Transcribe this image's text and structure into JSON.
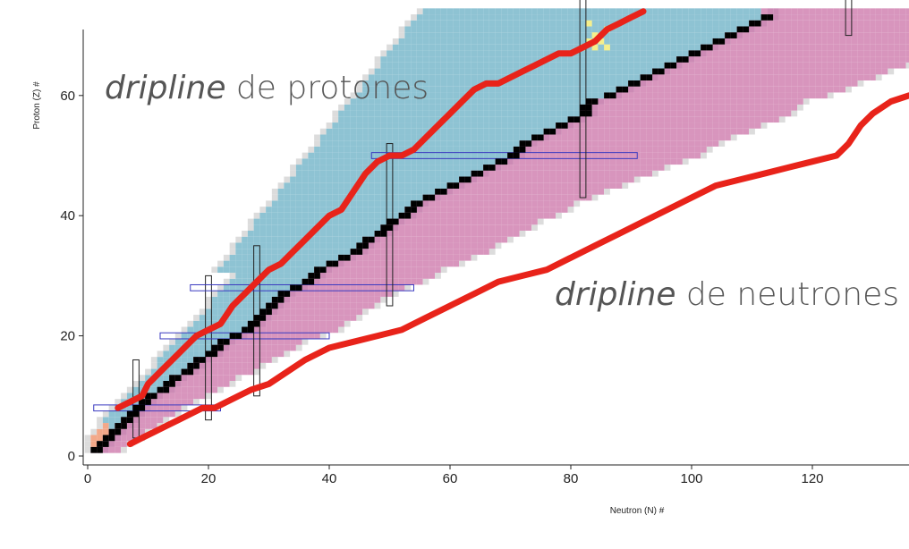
{
  "chart_data": {
    "type": "scatter",
    "title": "",
    "xlabel": "Neutron (N) #",
    "ylabel": "Proton (Z) #",
    "xlim": [
      -1,
      136
    ],
    "ylim": [
      -1,
      71
    ],
    "x_ticks": [
      0,
      20,
      40,
      60,
      80,
      100,
      120
    ],
    "y_ticks": [
      0,
      20,
      40,
      60
    ],
    "magic_numbers": [
      8,
      20,
      28,
      50,
      82,
      126
    ],
    "legend": [],
    "annotations": [
      {
        "italic": "dripline",
        "rest": " de protones",
        "anchor_n": 3,
        "anchor_z": 59
      },
      {
        "italic": "dripline",
        "rest": " de neutrones",
        "anchor_n": 77,
        "anchor_z": 26
      }
    ],
    "series": [
      {
        "name": "proton dripline",
        "color": "#e8231a",
        "points": [
          [
            5,
            8
          ],
          [
            7,
            9
          ],
          [
            9,
            10
          ],
          [
            10,
            12
          ],
          [
            11,
            13
          ],
          [
            12,
            14
          ],
          [
            14,
            16
          ],
          [
            15,
            17
          ],
          [
            16,
            18
          ],
          [
            17,
            19
          ],
          [
            18,
            20
          ],
          [
            20,
            21
          ],
          [
            22,
            22
          ],
          [
            24,
            25
          ],
          [
            26,
            27
          ],
          [
            28,
            29
          ],
          [
            30,
            31
          ],
          [
            32,
            32
          ],
          [
            34,
            34
          ],
          [
            36,
            36
          ],
          [
            38,
            38
          ],
          [
            40,
            40
          ],
          [
            42,
            41
          ],
          [
            44,
            44
          ],
          [
            46,
            47
          ],
          [
            48,
            49
          ],
          [
            50,
            50
          ],
          [
            52,
            50
          ],
          [
            54,
            51
          ],
          [
            56,
            53
          ],
          [
            58,
            55
          ],
          [
            60,
            57
          ],
          [
            62,
            59
          ],
          [
            64,
            61
          ],
          [
            66,
            62
          ],
          [
            68,
            62
          ],
          [
            70,
            63
          ],
          [
            72,
            64
          ],
          [
            74,
            65
          ],
          [
            76,
            66
          ],
          [
            78,
            67
          ],
          [
            80,
            67
          ],
          [
            82,
            68
          ],
          [
            84,
            69
          ],
          [
            86,
            71
          ],
          [
            88,
            72
          ],
          [
            90,
            73
          ],
          [
            92,
            74
          ]
        ]
      },
      {
        "name": "neutron dripline",
        "color": "#e8231a",
        "points": [
          [
            7,
            2
          ],
          [
            9,
            3
          ],
          [
            11,
            4
          ],
          [
            13,
            5
          ],
          [
            15,
            6
          ],
          [
            17,
            7
          ],
          [
            19,
            8
          ],
          [
            21,
            8
          ],
          [
            23,
            9
          ],
          [
            25,
            10
          ],
          [
            27,
            11
          ],
          [
            30,
            12
          ],
          [
            33,
            14
          ],
          [
            36,
            16
          ],
          [
            40,
            18
          ],
          [
            44,
            19
          ],
          [
            48,
            20
          ],
          [
            52,
            21
          ],
          [
            56,
            23
          ],
          [
            60,
            25
          ],
          [
            64,
            27
          ],
          [
            68,
            29
          ],
          [
            72,
            30
          ],
          [
            76,
            31
          ],
          [
            80,
            33
          ],
          [
            84,
            35
          ],
          [
            88,
            37
          ],
          [
            92,
            39
          ],
          [
            96,
            41
          ],
          [
            100,
            43
          ],
          [
            104,
            45
          ],
          [
            108,
            46
          ],
          [
            112,
            47
          ],
          [
            116,
            48
          ],
          [
            120,
            49
          ],
          [
            124,
            50
          ],
          [
            126,
            52
          ],
          [
            128,
            55
          ],
          [
            130,
            57
          ],
          [
            133,
            59
          ],
          [
            136,
            60
          ]
        ]
      },
      {
        "name": "stable isotopes",
        "color": "#000000",
        "points": [
          [
            1,
            1
          ],
          [
            2,
            2
          ],
          [
            3,
            3
          ],
          [
            4,
            4
          ],
          [
            5,
            5
          ],
          [
            6,
            6
          ],
          [
            7,
            7
          ],
          [
            8,
            8
          ],
          [
            9,
            9
          ],
          [
            10,
            10
          ],
          [
            12,
            11
          ],
          [
            13,
            12
          ],
          [
            14,
            13
          ],
          [
            16,
            14
          ],
          [
            17,
            15
          ],
          [
            18,
            16
          ],
          [
            20,
            17
          ],
          [
            21,
            18
          ],
          [
            22,
            19
          ],
          [
            24,
            20
          ],
          [
            26,
            21
          ],
          [
            27,
            22
          ],
          [
            28,
            23
          ],
          [
            29,
            24
          ],
          [
            30,
            25
          ],
          [
            31,
            26
          ],
          [
            32,
            27
          ],
          [
            34,
            28
          ],
          [
            36,
            29
          ],
          [
            37,
            30
          ],
          [
            38,
            31
          ],
          [
            40,
            32
          ],
          [
            42,
            33
          ],
          [
            44,
            34
          ],
          [
            45,
            35
          ],
          [
            46,
            36
          ],
          [
            48,
            37
          ],
          [
            49,
            38
          ],
          [
            50,
            39
          ],
          [
            52,
            40
          ],
          [
            53,
            41
          ],
          [
            54,
            42
          ],
          [
            56,
            43
          ],
          [
            58,
            44
          ],
          [
            60,
            45
          ],
          [
            62,
            46
          ],
          [
            64,
            47
          ],
          [
            66,
            48
          ],
          [
            68,
            49
          ],
          [
            70,
            50
          ],
          [
            71,
            51
          ],
          [
            72,
            52
          ],
          [
            74,
            53
          ],
          [
            76,
            54
          ],
          [
            78,
            55
          ],
          [
            80,
            56
          ],
          [
            82,
            57
          ],
          [
            82,
            58
          ],
          [
            83,
            59
          ],
          [
            86,
            60
          ],
          [
            88,
            61
          ],
          [
            90,
            62
          ],
          [
            92,
            63
          ],
          [
            94,
            64
          ],
          [
            96,
            65
          ],
          [
            98,
            66
          ],
          [
            100,
            67
          ],
          [
            102,
            68
          ],
          [
            104,
            69
          ],
          [
            106,
            70
          ],
          [
            108,
            71
          ],
          [
            110,
            72
          ],
          [
            112,
            73
          ]
        ]
      }
    ]
  }
}
